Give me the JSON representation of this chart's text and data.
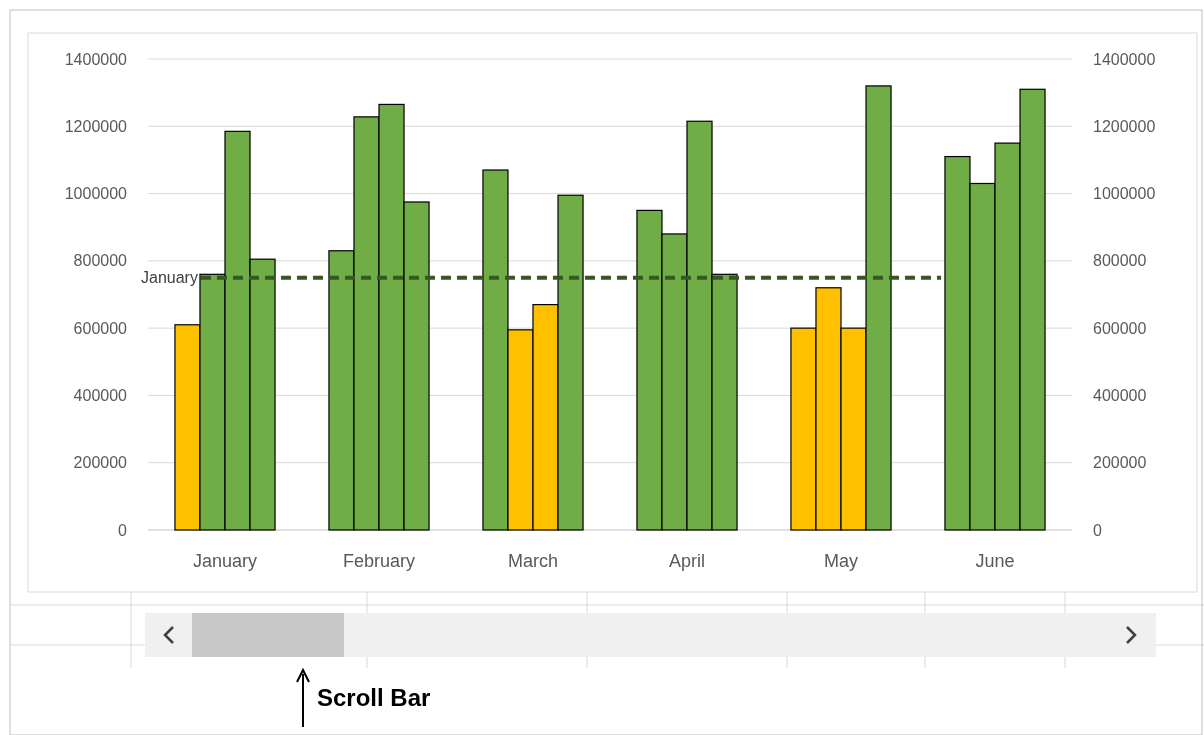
{
  "chart_data": {
    "type": "bar",
    "categories": [
      "January",
      "February",
      "March",
      "April",
      "May",
      "June"
    ],
    "series": [
      {
        "colors": [
          "#ffc000",
          "#70ad47",
          "#70ad47",
          "#70ad47",
          "#ffc000",
          "#70ad47"
        ],
        "values": [
          610000,
          830000,
          1070000,
          950000,
          600000,
          1110000
        ]
      },
      {
        "colors": [
          "#70ad47",
          "#70ad47",
          "#ffc000",
          "#70ad47",
          "#ffc000",
          "#70ad47"
        ],
        "values": [
          760000,
          1228000,
          595000,
          880000,
          720000,
          1030000
        ]
      },
      {
        "colors": [
          "#70ad47",
          "#70ad47",
          "#ffc000",
          "#70ad47",
          "#ffc000",
          "#70ad47"
        ],
        "values": [
          1185000,
          1265000,
          670000,
          1215000,
          600000,
          1150000
        ]
      },
      {
        "colors": [
          "#70ad47",
          "#70ad47",
          "#70ad47",
          "#70ad47",
          "#70ad47",
          "#70ad47"
        ],
        "values": [
          805000,
          975000,
          995000,
          760000,
          1320000,
          1310000
        ]
      }
    ],
    "ylim": [
      0,
      1400000
    ],
    "yticks": [
      0,
      200000,
      400000,
      600000,
      800000,
      1000000,
      1200000,
      1400000
    ],
    "y2lim": [
      0,
      1400000
    ],
    "y2ticks": [
      0,
      200000,
      400000,
      600000,
      800000,
      1000000,
      1200000,
      1400000
    ],
    "grid": "y",
    "ref_lines": [
      {
        "axis": "y",
        "value": 750000,
        "label": "January",
        "color": "#375623",
        "line_style": "dashed"
      }
    ],
    "annotations": [
      "Scroll Bar"
    ]
  }
}
